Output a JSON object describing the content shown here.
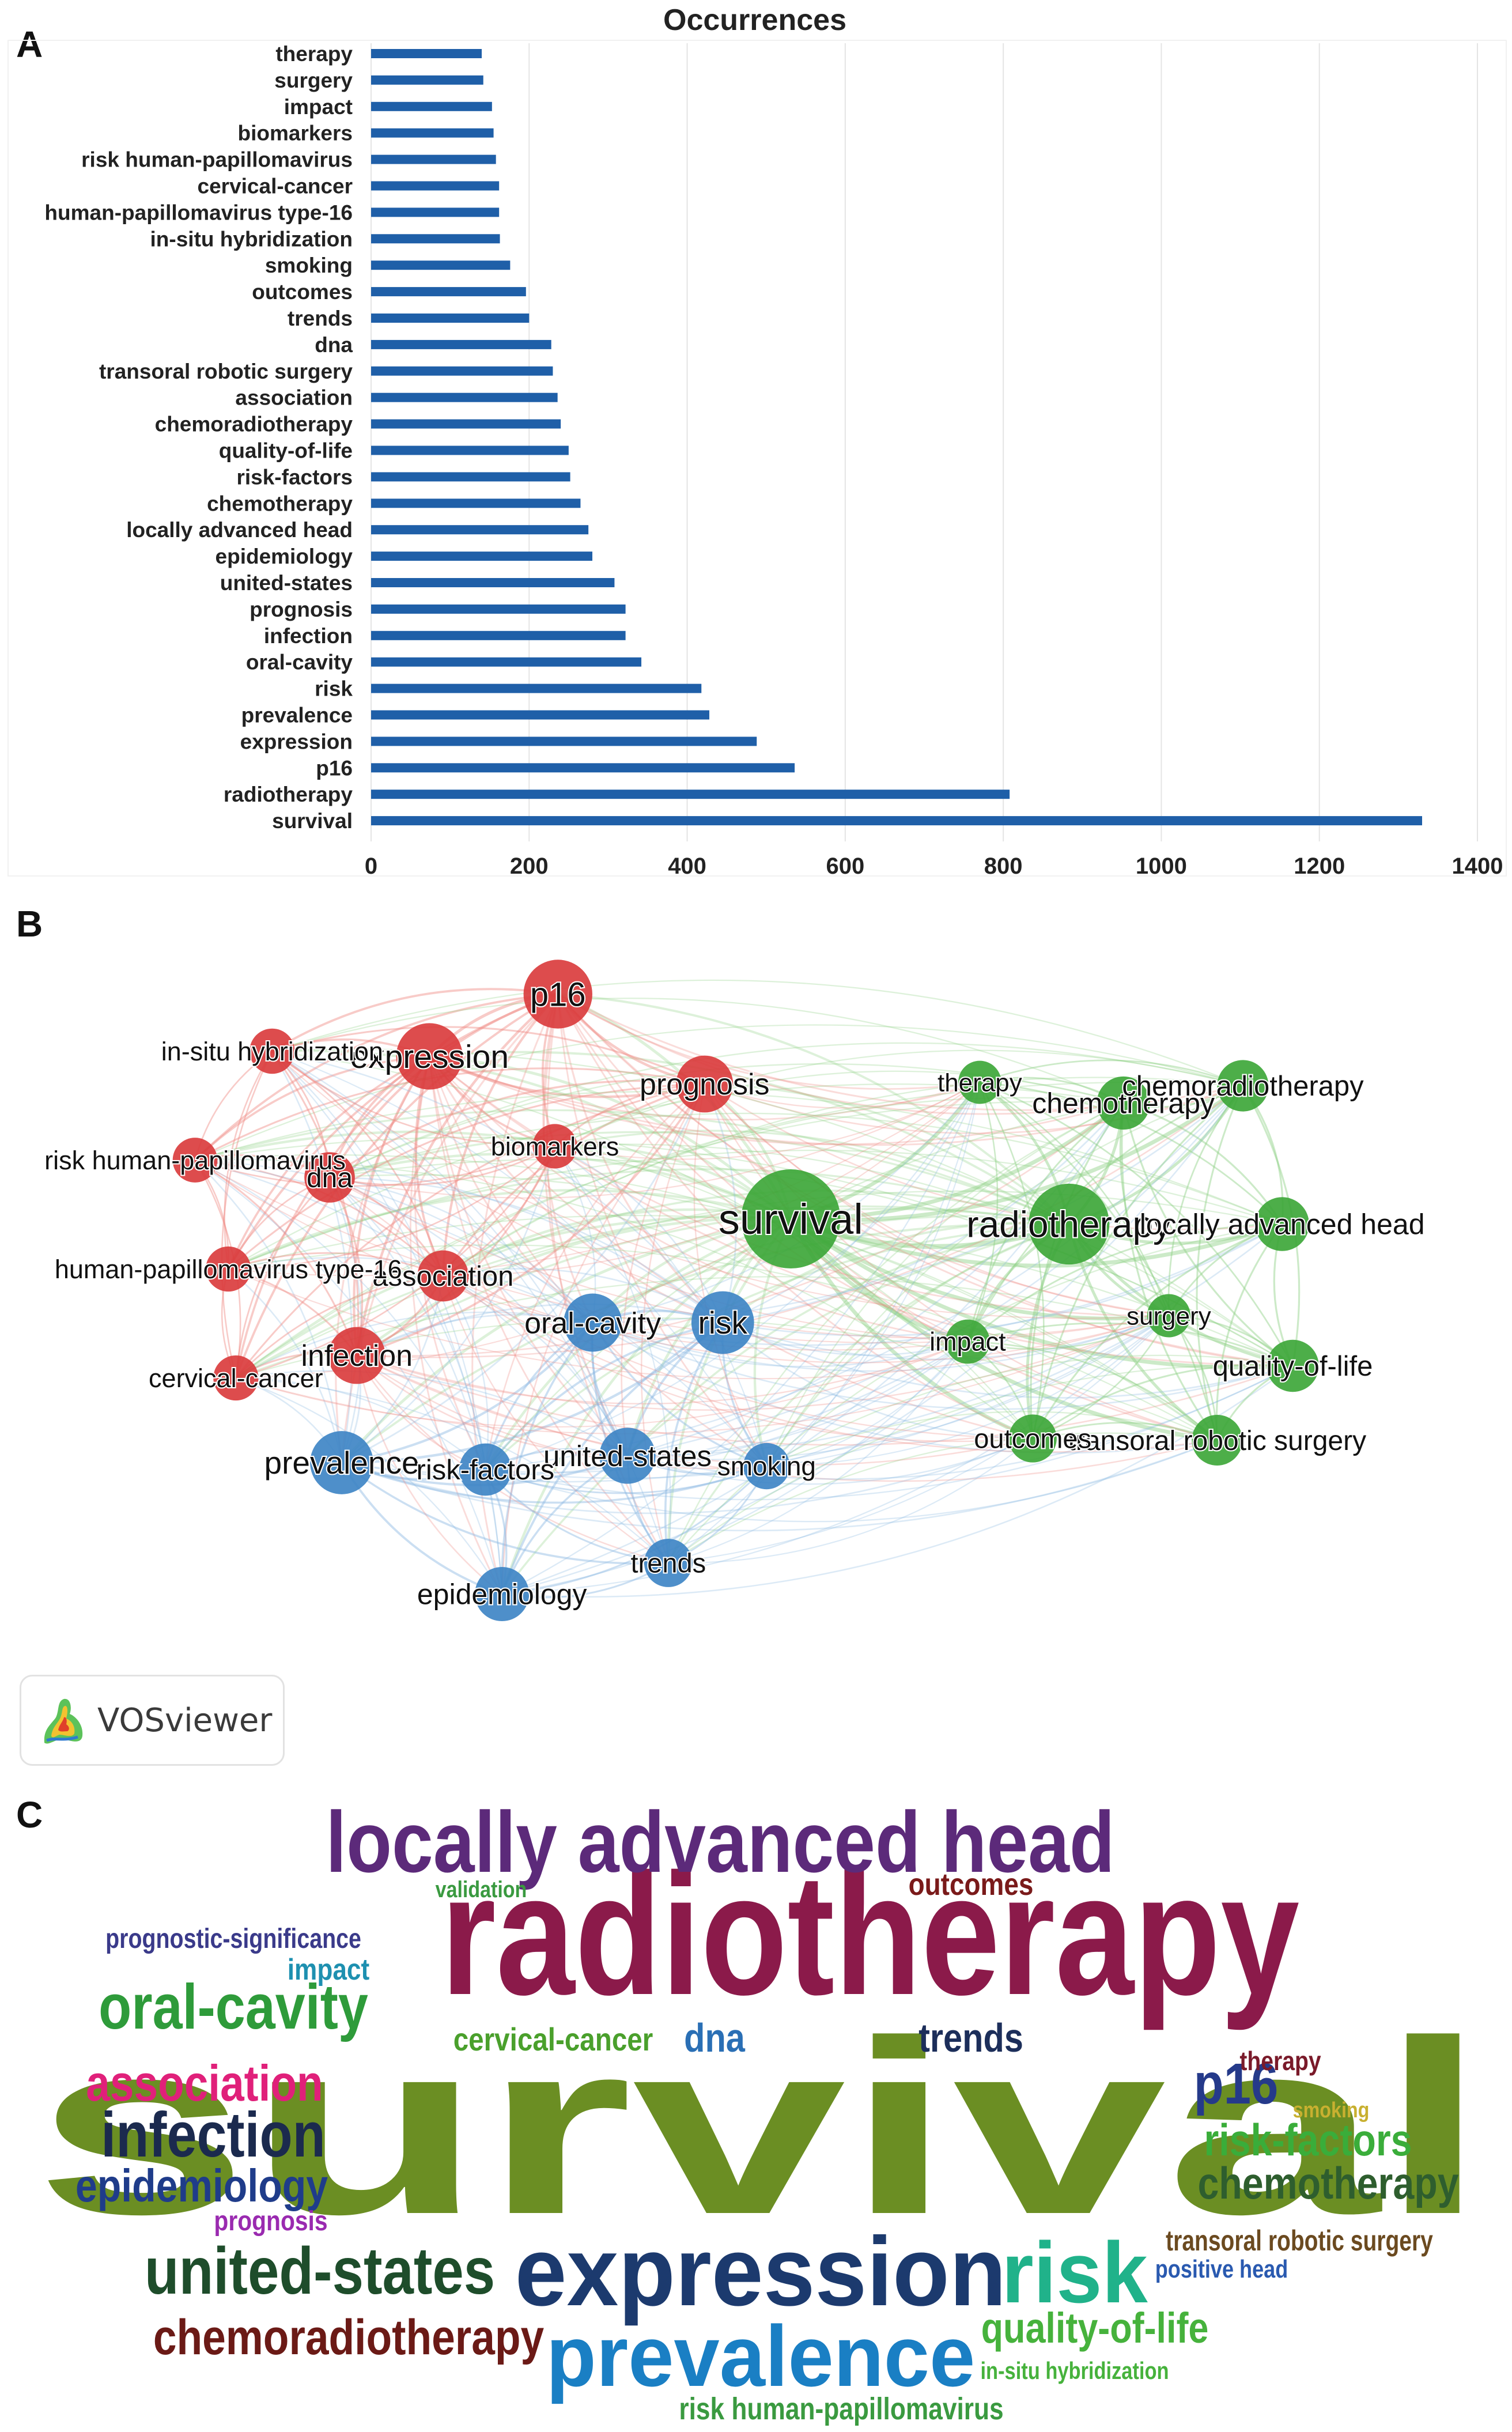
{
  "panels": {
    "a": "A",
    "b": "B",
    "c": "C"
  },
  "chart_data": [
    {
      "type": "bar",
      "orientation": "horizontal",
      "title": "Occurrences",
      "categories": [
        "therapy",
        "surgery",
        "impact",
        "biomarkers",
        "risk human-papillomavirus",
        "cervical-cancer",
        "human-papillomavirus type-16",
        "in-situ hybridization",
        "smoking",
        "outcomes",
        "trends",
        "dna",
        "transoral robotic surgery",
        "association",
        "chemoradiotherapy",
        "quality-of-life",
        "risk-factors",
        "chemotherapy",
        "locally advanced head",
        "epidemiology",
        "united-states",
        "prognosis",
        "infection",
        "oral-cavity",
        "risk",
        "prevalence",
        "expression",
        "p16",
        "radiotherapy",
        "survival"
      ],
      "values": [
        140,
        142,
        153,
        155,
        158,
        162,
        162,
        163,
        176,
        196,
        200,
        228,
        230,
        236,
        240,
        250,
        252,
        265,
        275,
        280,
        308,
        322,
        322,
        342,
        418,
        428,
        488,
        536,
        808,
        1330
      ],
      "xlim": [
        0,
        1400
      ],
      "xticks": [
        0,
        200,
        400,
        600,
        800,
        1000,
        1200,
        1400
      ],
      "bar_color": "#1f5fa8",
      "grid": true
    },
    {
      "type": "network",
      "clusters": [
        {
          "name": "red",
          "color": "#d9383a",
          "edge_color": "#ef8b86"
        },
        {
          "name": "green",
          "color": "#3aa535",
          "edge_color": "#8fd084"
        },
        {
          "name": "blue",
          "color": "#3b83c4",
          "edge_color": "#8cb8e2"
        }
      ],
      "nodes": [
        {
          "label": "survival",
          "cluster": 1,
          "weight": 1330,
          "x": 0.523,
          "y": 0.505
        },
        {
          "label": "radiotherapy",
          "cluster": 1,
          "weight": 808,
          "x": 0.707,
          "y": 0.508
        },
        {
          "label": "p16",
          "cluster": 0,
          "weight": 536,
          "x": 0.369,
          "y": 0.375
        },
        {
          "label": "expression",
          "cluster": 0,
          "weight": 488,
          "x": 0.284,
          "y": 0.411
        },
        {
          "label": "prevalence",
          "cluster": 2,
          "weight": 428,
          "x": 0.226,
          "y": 0.646
        },
        {
          "label": "risk",
          "cluster": 2,
          "weight": 418,
          "x": 0.478,
          "y": 0.565
        },
        {
          "label": "oral-cavity",
          "cluster": 2,
          "weight": 342,
          "x": 0.392,
          "y": 0.565
        },
        {
          "label": "infection",
          "cluster": 0,
          "weight": 322,
          "x": 0.236,
          "y": 0.584
        },
        {
          "label": "prognosis",
          "cluster": 0,
          "weight": 322,
          "x": 0.466,
          "y": 0.427
        },
        {
          "label": "united-states",
          "cluster": 2,
          "weight": 308,
          "x": 0.415,
          "y": 0.642
        },
        {
          "label": "epidemiology",
          "cluster": 2,
          "weight": 280,
          "x": 0.332,
          "y": 0.722
        },
        {
          "label": "locally advanced head",
          "cluster": 1,
          "weight": 275,
          "x": 0.848,
          "y": 0.508
        },
        {
          "label": "chemotherapy",
          "cluster": 1,
          "weight": 265,
          "x": 0.743,
          "y": 0.438
        },
        {
          "label": "risk-factors",
          "cluster": 2,
          "weight": 252,
          "x": 0.321,
          "y": 0.65
        },
        {
          "label": "quality-of-life",
          "cluster": 1,
          "weight": 250,
          "x": 0.855,
          "y": 0.59
        },
        {
          "label": "chemoradiotherapy",
          "cluster": 1,
          "weight": 240,
          "x": 0.822,
          "y": 0.428
        },
        {
          "label": "association",
          "cluster": 0,
          "weight": 236,
          "x": 0.293,
          "y": 0.538
        },
        {
          "label": "transoral robotic surgery",
          "cluster": 1,
          "weight": 230,
          "x": 0.805,
          "y": 0.633
        },
        {
          "label": "dna",
          "cluster": 0,
          "weight": 228,
          "x": 0.218,
          "y": 0.481
        },
        {
          "label": "trends",
          "cluster": 2,
          "weight": 200,
          "x": 0.442,
          "y": 0.704
        },
        {
          "label": "outcomes",
          "cluster": 1,
          "weight": 196,
          "x": 0.683,
          "y": 0.632
        },
        {
          "label": "smoking",
          "cluster": 2,
          "weight": 176,
          "x": 0.507,
          "y": 0.648
        },
        {
          "label": "in-situ hybridization",
          "cluster": 0,
          "weight": 163,
          "x": 0.18,
          "y": 0.408
        },
        {
          "label": "human-papillomavirus type-16",
          "cluster": 0,
          "weight": 162,
          "x": 0.151,
          "y": 0.534
        },
        {
          "label": "cervical-cancer",
          "cluster": 0,
          "weight": 162,
          "x": 0.156,
          "y": 0.597
        },
        {
          "label": "risk human-papillomavirus",
          "cluster": 0,
          "weight": 158,
          "x": 0.129,
          "y": 0.471
        },
        {
          "label": "biomarkers",
          "cluster": 0,
          "weight": 155,
          "x": 0.367,
          "y": 0.463
        },
        {
          "label": "impact",
          "cluster": 1,
          "weight": 153,
          "x": 0.64,
          "y": 0.576
        },
        {
          "label": "surgery",
          "cluster": 1,
          "weight": 142,
          "x": 0.773,
          "y": 0.561
        },
        {
          "label": "therapy",
          "cluster": 1,
          "weight": 140,
          "x": 0.648,
          "y": 0.426
        }
      ],
      "logo_text": "VOSviewer"
    },
    {
      "type": "wordcloud",
      "words": [
        {
          "text": "survival",
          "color": "#6b8e23",
          "size": 1.0
        },
        {
          "text": "radiotherapy",
          "color": "#8b1a4a",
          "size": 0.62
        },
        {
          "text": "locally advanced head",
          "color": "#5c2a7a",
          "size": 0.28
        },
        {
          "text": "expression",
          "color": "#1c3a6e",
          "size": 0.33
        },
        {
          "text": "prevalence",
          "color": "#1a7fc4",
          "size": 0.28
        },
        {
          "text": "united-states",
          "color": "#1e4d2b",
          "size": 0.22
        },
        {
          "text": "risk",
          "color": "#20b28a",
          "size": 0.3
        },
        {
          "text": "oral-cavity",
          "color": "#2e9b3a",
          "size": 0.2
        },
        {
          "text": "infection",
          "color": "#1b2a4e",
          "size": 0.22
        },
        {
          "text": "association",
          "color": "#e0207a",
          "size": 0.17
        },
        {
          "text": "epidemiology",
          "color": "#1f3c8a",
          "size": 0.15
        },
        {
          "text": "chemoradiotherapy",
          "color": "#6b1a16",
          "size": 0.16
        },
        {
          "text": "p16",
          "color": "#253a8a",
          "size": 0.19
        },
        {
          "text": "risk-factors",
          "color": "#3aad3a",
          "size": 0.14
        },
        {
          "text": "chemotherapy",
          "color": "#2e5e2e",
          "size": 0.15
        },
        {
          "text": "quality-of-life",
          "color": "#46b23c",
          "size": 0.13
        },
        {
          "text": "trends",
          "color": "#1c2e5a",
          "size": 0.12
        },
        {
          "text": "dna",
          "color": "#2a6fb5",
          "size": 0.13
        },
        {
          "text": "cervical-cancer",
          "color": "#4aa02c",
          "size": 0.1
        },
        {
          "text": "outcomes",
          "color": "#7a1a1a",
          "size": 0.09
        },
        {
          "text": "prognostic-significance",
          "color": "#3a3a8a",
          "size": 0.08
        },
        {
          "text": "impact",
          "color": "#1e90b0",
          "size": 0.09
        },
        {
          "text": "validation",
          "color": "#3a9a40",
          "size": 0.07
        },
        {
          "text": "therapy",
          "color": "#7a1a2a",
          "size": 0.08
        },
        {
          "text": "smoking",
          "color": "#c8b030",
          "size": 0.07
        },
        {
          "text": "transoral robotic surgery",
          "color": "#6b4a20",
          "size": 0.09
        },
        {
          "text": "positive head",
          "color": "#2a5ab0",
          "size": 0.08
        },
        {
          "text": "prognosis",
          "color": "#9a2ab0",
          "size": 0.08
        },
        {
          "text": "in-situ hybridization",
          "color": "#46b23c",
          "size": 0.07
        },
        {
          "text": "risk human-papillomavirus",
          "color": "#3a9a40",
          "size": 0.09
        }
      ]
    }
  ]
}
